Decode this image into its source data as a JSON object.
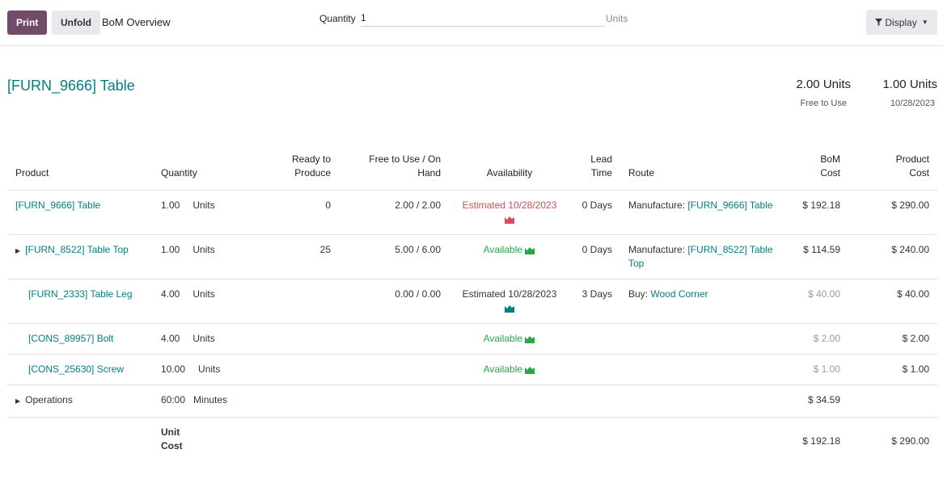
{
  "toolbar": {
    "print_label": "Print",
    "unfold_label": "Unfold",
    "breadcrumb": "BoM Overview",
    "quantity_label": "Quantity",
    "quantity_value": "1",
    "quantity_uom": "Units",
    "display_label": "Display",
    "display_icon": "filter-icon"
  },
  "header": {
    "product": "[FURN_9666] Table",
    "free_to_use_qty": "2.00 Units",
    "free_to_use_label": "Free to Use",
    "forecast_qty": "1.00 Units",
    "forecast_date": "10/28/2023"
  },
  "columns": {
    "product": "Product",
    "quantity": "Quantity",
    "ready_1": "Ready to",
    "ready_2": "Produce",
    "free_1": "Free to Use / On",
    "free_2": "Hand",
    "availability": "Availability",
    "lead_1": "Lead",
    "lead_2": "Time",
    "route": "Route",
    "bom_cost_1": "BoM",
    "bom_cost_2": "Cost",
    "product_cost_1": "Product",
    "product_cost_2": "Cost"
  },
  "rows": [
    {
      "product": "[FURN_9666] Table",
      "qty": "1.00",
      "uom": "Units",
      "ready": "0",
      "free_on_hand": "2.00 / 2.00",
      "availability": "Estimated 10/28/2023",
      "availability_color": "#d44c59",
      "lead": "0 Days",
      "route_prefix": "Manufacture: ",
      "route_link": "[FURN_9666] Table",
      "bom_cost": "$ 192.18",
      "product_cost": "$ 290.00"
    },
    {
      "product": "[FURN_8522] Table Top",
      "qty": "1.00",
      "uom": "Units",
      "ready": "25",
      "free_on_hand": "5.00 / 6.00",
      "availability": "Available",
      "availability_color": "#28a745",
      "lead": "0 Days",
      "route_prefix": "Manufacture: ",
      "route_link": "[FURN_8522] Table Top",
      "bom_cost": "$ 114.59",
      "product_cost": "$ 240.00"
    },
    {
      "product": "[FURN_2333] Table Leg",
      "qty": "4.00",
      "uom": "Units",
      "ready": "",
      "free_on_hand": "0.00 / 0.00",
      "availability": "Estimated 10/28/2023",
      "availability_color": "#222222",
      "lead": "3 Days",
      "route_prefix": "Buy: ",
      "route_link": "Wood Corner",
      "bom_cost": "$ 40.00",
      "product_cost": "$ 40.00"
    },
    {
      "product": "[CONS_89957] Bolt",
      "qty": "4.00",
      "uom": "Units",
      "availability": "Available",
      "availability_color": "#28a745",
      "bom_cost": "$ 2.00",
      "product_cost": "$ 2.00"
    },
    {
      "product": "[CONS_25630] Screw",
      "qty": "10.00",
      "uom": "Units",
      "availability": "Available",
      "availability_color": "#28a745",
      "bom_cost": "$ 1.00",
      "product_cost": "$ 1.00"
    }
  ],
  "operations": {
    "label": "Operations",
    "qty": "60:00",
    "uom": "Minutes",
    "bom_cost": "$ 34.59"
  },
  "footer": {
    "label_1": "Unit",
    "label_2": "Cost",
    "bom_cost": "$ 192.18",
    "product_cost": "$ 290.00"
  },
  "colors": {
    "accent": "#714b67",
    "link": "#017e84",
    "late": "#d44c59",
    "available": "#28a745"
  }
}
